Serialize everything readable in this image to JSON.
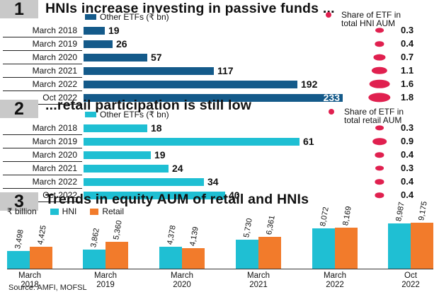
{
  "colors": {
    "navy": "#145a8a",
    "cyan": "#1fbfd3",
    "orange": "#f27b2b",
    "pink": "#e0204f",
    "section_bg": "#c9c9c9"
  },
  "section1": {
    "number": "1",
    "title": "HNIs increase investing in passive funds ...",
    "legend_bar": "Other ETFs (₹ bn)",
    "legend_dot": [
      "Share of ETF in",
      "total HNI AUM"
    ]
  },
  "section2": {
    "number": "2",
    "title": "...retail participation is still low",
    "legend_bar": "Other ETFs (₹ bn)",
    "legend_dot": [
      "Share of ETF in",
      "total retail AUM"
    ]
  },
  "section3": {
    "number": "3",
    "title": "Trends in equity AUM of retail and HNIs",
    "unit": "₹ billion",
    "legend_hni": "HNI",
    "legend_retail": "Retail"
  },
  "source": "Source: AMFI, MOFSL",
  "chart_data": [
    {
      "type": "bar",
      "orientation": "horizontal",
      "categories": [
        "March 2018",
        "March 2019",
        "March 2020",
        "March 2021",
        "March 2022",
        "Oct 2022"
      ],
      "series": [
        {
          "name": "Other ETFs (₹ bn)",
          "values": [
            19,
            26,
            57,
            117,
            192,
            233
          ]
        },
        {
          "name": "Share of ETF in total HNI AUM",
          "values": [
            0.3,
            0.4,
            0.7,
            1.1,
            1.6,
            1.8
          ]
        }
      ]
    },
    {
      "type": "bar",
      "orientation": "horizontal",
      "categories": [
        "March 2018",
        "March 2019",
        "March 2020",
        "March 2021",
        "March 2022",
        "Oct 2022"
      ],
      "series": [
        {
          "name": "Other ETFs (₹ bn)",
          "values": [
            18,
            61,
            19,
            24,
            34,
            40
          ]
        },
        {
          "name": "Share of ETF in total retail AUM",
          "values": [
            0.3,
            0.9,
            0.4,
            0.3,
            0.4,
            0.4
          ]
        }
      ]
    },
    {
      "type": "bar",
      "orientation": "vertical",
      "categories": [
        [
          "March",
          "2018"
        ],
        [
          "March",
          "2019"
        ],
        [
          "March",
          "2020"
        ],
        [
          "March",
          "2021"
        ],
        [
          "March",
          "2022"
        ],
        [
          "Oct",
          "2022"
        ]
      ],
      "series": [
        {
          "name": "HNI",
          "values": [
            3498,
            3862,
            4378,
            5730,
            8072,
            8987
          ],
          "labels": [
            "3,498",
            "3,862",
            "4,378",
            "5,730",
            "8,072",
            "8,987"
          ]
        },
        {
          "name": "Retail",
          "values": [
            4425,
            5360,
            4139,
            6361,
            8169,
            9175
          ],
          "labels": [
            "4,425",
            "5,360",
            "4,139",
            "6,361",
            "8,169",
            "9,175"
          ]
        }
      ]
    }
  ]
}
